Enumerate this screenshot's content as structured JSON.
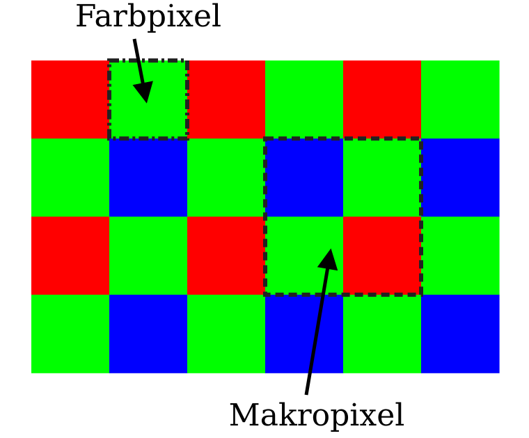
{
  "labels": {
    "color_pixel": "Farbpixel",
    "macro_pixel": "Makropixel"
  },
  "colors": {
    "R": "#ff0000",
    "G": "#00ff00",
    "B": "#0000ff",
    "outline": "#222222",
    "arrow": "#000000"
  },
  "grid": [
    [
      "R",
      "G",
      "R",
      "G",
      "R",
      "G"
    ],
    [
      "G",
      "B",
      "G",
      "B",
      "G",
      "B"
    ],
    [
      "R",
      "G",
      "R",
      "G",
      "R",
      "G"
    ],
    [
      "G",
      "B",
      "G",
      "B",
      "G",
      "B"
    ]
  ],
  "highlights": [
    {
      "name": "color-pixel-outline",
      "row": 0,
      "col": 1,
      "rows": 1,
      "cols": 1,
      "style": "dash-dot"
    },
    {
      "name": "macro-pixel-outline",
      "row": 1,
      "col": 3,
      "rows": 2,
      "cols": 2,
      "style": "dashed"
    }
  ]
}
